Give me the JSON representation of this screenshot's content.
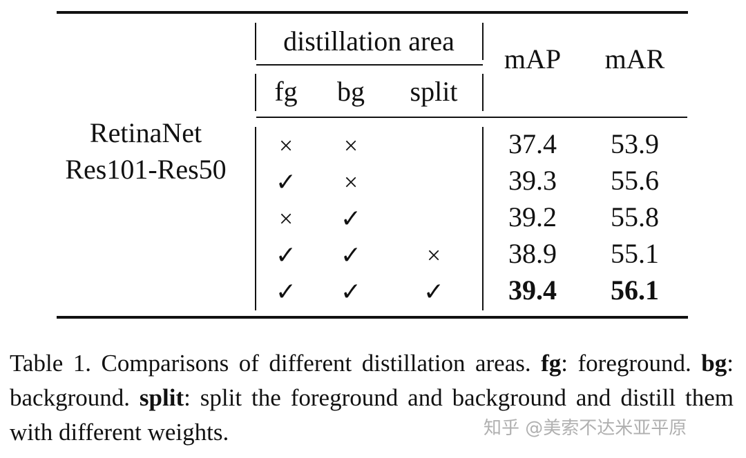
{
  "table": {
    "header": {
      "group_label": "distillation area",
      "sub_labels": [
        "fg",
        "bg",
        "split"
      ],
      "metric_labels": [
        "mAP",
        "mAR"
      ]
    },
    "model_label": [
      "RetinaNet",
      "Res101-Res50"
    ],
    "rows": [
      {
        "fg": "×",
        "bg": "×",
        "split": "",
        "mAP": "37.4",
        "mAR": "53.9",
        "bold": false
      },
      {
        "fg": "✓",
        "bg": "×",
        "split": "",
        "mAP": "39.3",
        "mAR": "55.6",
        "bold": false
      },
      {
        "fg": "×",
        "bg": "✓",
        "split": "",
        "mAP": "39.2",
        "mAR": "55.8",
        "bold": false
      },
      {
        "fg": "✓",
        "bg": "✓",
        "split": "×",
        "mAP": "38.9",
        "mAR": "55.1",
        "bold": false
      },
      {
        "fg": "✓",
        "bg": "✓",
        "split": "✓",
        "mAP": "39.4",
        "mAR": "56.1",
        "bold": true
      }
    ]
  },
  "caption": {
    "prefix": "Table 1.  Comparisons of different distillation areas. ",
    "fg_term": "fg",
    "fg_def": ": foreground. ",
    "bg_term": "bg",
    "bg_def": ": background. ",
    "split_term": "split",
    "split_def": ": split the foreground and background and distill them with different weights."
  },
  "watermark": "知乎 @美索不达米亚平原"
}
